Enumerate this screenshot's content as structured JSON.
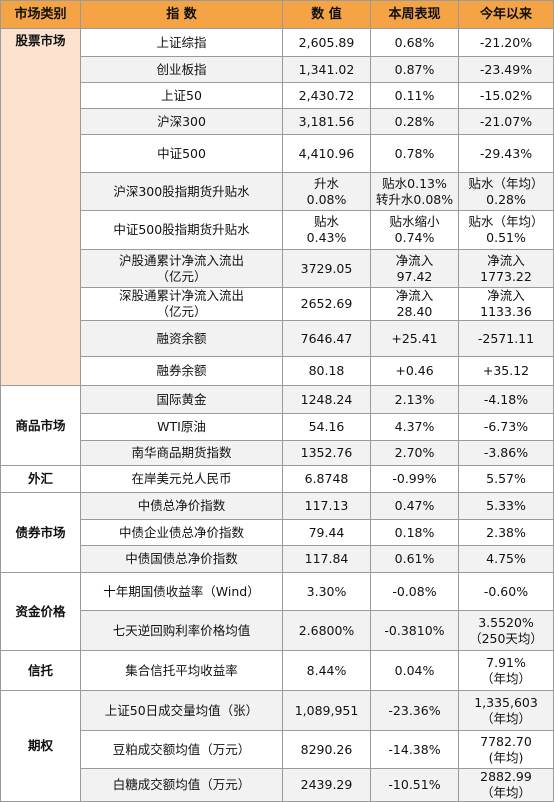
{
  "table": {
    "header": [
      "市场类别",
      "指 数",
      "数 值",
      "本周表现",
      "今年以来"
    ],
    "groups": [
      {
        "category": "股票市场",
        "rows": [
          [
            "上证综指",
            "2,605.89",
            "0.68%",
            "-21.20%"
          ],
          [
            "创业板指",
            "1,341.02",
            "0.87%",
            "-23.49%"
          ],
          [
            "上证50",
            "2,430.72",
            "0.11%",
            "-15.02%"
          ],
          [
            "沪深300",
            "3,181.56",
            "0.28%",
            "-21.07%"
          ],
          [
            "中证500",
            "4,410.96",
            "0.78%",
            "-29.43%"
          ],
          [
            "沪深300股指期货升贴水",
            "升水\n0.08%",
            "贴水0.13%\n转升水0.08%",
            "贴水（年均）\n0.28%"
          ],
          [
            "中证500股指期货升贴水",
            "贴水\n0.43%",
            "贴水缩小\n0.74%",
            "贴水（年均）\n0.51%"
          ],
          [
            "沪股通累计净流入流出\n（亿元）",
            "3729.05",
            "净流入\n97.42",
            "净流入\n1773.22"
          ],
          [
            "深股通累计净流入流出\n（亿元）",
            "2652.69",
            "净流入\n28.40",
            "净流入\n1133.36"
          ],
          [
            "融资余额",
            "7646.47",
            "+25.41",
            "-2571.11"
          ],
          [
            "融券余额",
            "80.18",
            "+0.46",
            "+35.12"
          ]
        ]
      },
      {
        "category": "商品市场",
        "rows": [
          [
            "国际黄金",
            "1248.24",
            "2.13%",
            "-4.18%"
          ],
          [
            "WTI原油",
            "54.16",
            "4.37%",
            "-6.73%"
          ],
          [
            "南华商品期货指数",
            "1352.76",
            "2.70%",
            "-3.86%"
          ]
        ]
      },
      {
        "category": "外汇",
        "rows": [
          [
            "在岸美元兑人民币",
            "6.8748",
            "-0.99%",
            "5.57%"
          ]
        ]
      },
      {
        "category": "债券市场",
        "rows": [
          [
            "中债总净价指数",
            "117.13",
            "0.47%",
            "5.33%"
          ],
          [
            "中债企业债总净价指数",
            "79.44",
            "0.18%",
            "2.38%"
          ],
          [
            "中债国债总净价指数",
            "117.84",
            "0.61%",
            "4.75%"
          ]
        ]
      },
      {
        "category": "资金价格",
        "rows": [
          [
            "十年期国债收益率（Wind）",
            "3.30%",
            "-0.08%",
            "-0.60%"
          ],
          [
            "七天逆回购利率价格均值",
            "2.6800%",
            "-0.3810%",
            "3.5520%\n（250天均）"
          ]
        ]
      },
      {
        "category": "信托",
        "rows": [
          [
            "集合信托平均收益率",
            "8.44%",
            "0.04%",
            "7.91%\n（年均）"
          ]
        ]
      },
      {
        "category": "期权",
        "rows": [
          [
            "上证50日成交量均值（张）",
            "1,089,951",
            "-23.36%",
            "1,335,603\n（年均）"
          ],
          [
            "豆粕成交额均值（万元）",
            "8290.26",
            "-14.38%",
            "7782.70\n(年均)"
          ],
          [
            "白糖成交额均值（万元）",
            "2439.29",
            "-10.51%",
            "2882.99\n（年均）"
          ]
        ]
      }
    ]
  }
}
